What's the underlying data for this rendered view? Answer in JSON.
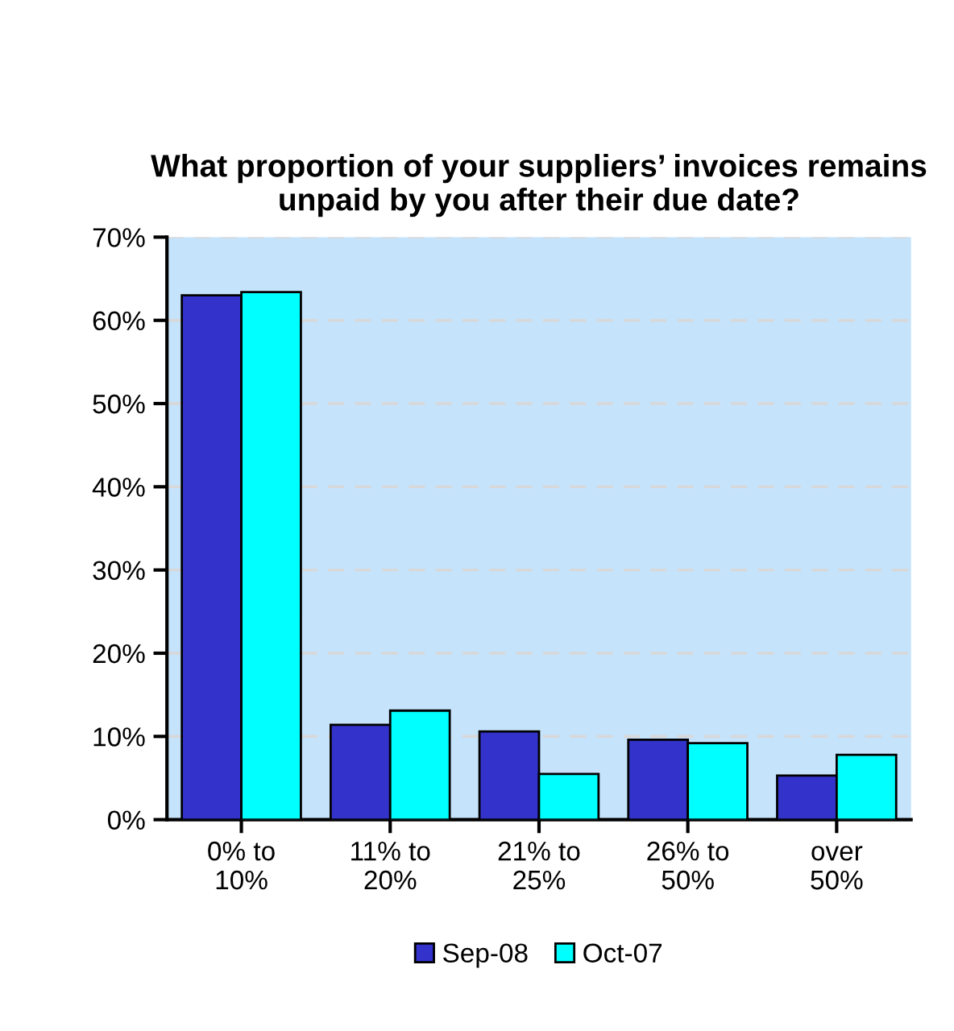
{
  "chart_data": {
    "type": "bar",
    "title": "What proportion of your suppliers’ invoices remains unpaid by you after their due date?",
    "categories": [
      "0% to\n10%",
      "11% to\n20%",
      "21% to\n25%",
      "26% to\n50%",
      "over\n50%"
    ],
    "series": [
      {
        "name": "Sep-08",
        "color": "#3333cc",
        "values": [
          63.0,
          11.4,
          10.6,
          9.6,
          5.3
        ]
      },
      {
        "name": "Oct-07",
        "color": "#00ffff",
        "values": [
          63.4,
          13.1,
          5.5,
          9.2,
          7.8
        ]
      }
    ],
    "ylim": [
      0,
      70
    ],
    "yticks": [
      {
        "value": 0,
        "label": "0%"
      },
      {
        "value": 10,
        "label": "10%"
      },
      {
        "value": 20,
        "label": "20%"
      },
      {
        "value": 30,
        "label": "30%"
      },
      {
        "value": 40,
        "label": "40%"
      },
      {
        "value": 50,
        "label": "50%"
      },
      {
        "value": 60,
        "label": "60%"
      },
      {
        "value": 70,
        "label": "70%"
      }
    ],
    "grid": "y",
    "legend": "bottom"
  }
}
